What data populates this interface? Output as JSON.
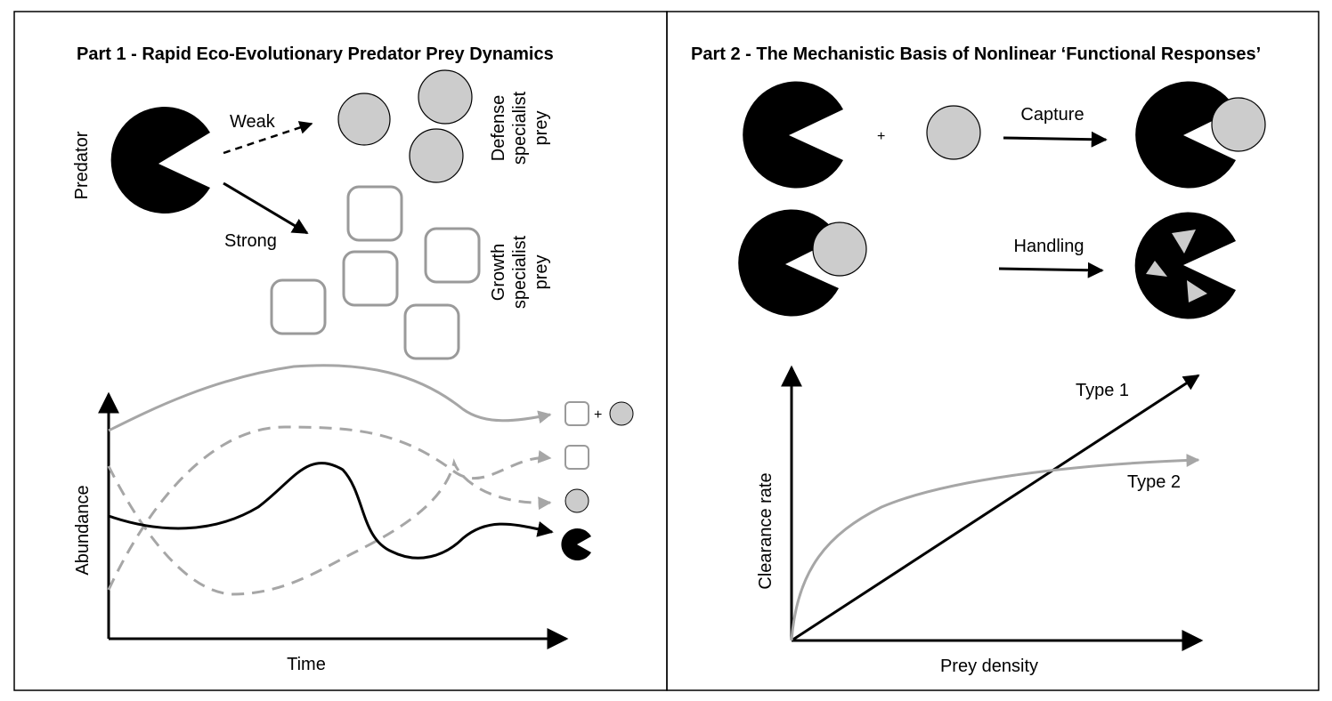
{
  "colors": {
    "black": "#000000",
    "grey_fill": "#cccccc",
    "grey_stroke": "#9a9a9a",
    "grey_line": "#a6a6a6"
  },
  "part1": {
    "title": "Part 1 - Rapid Eco-Evolutionary Predator Prey Dynamics",
    "predator_label": "Predator",
    "weak_label": "Weak",
    "strong_label": "Strong",
    "defense_label": [
      "Defense",
      "specialist",
      "prey"
    ],
    "growth_label": [
      "Growth",
      "specialist",
      "prey"
    ],
    "plot_xlabel": "Time",
    "plot_ylabel": "Abundance",
    "plus_sign": "+"
  },
  "part2": {
    "title": "Part 2 - The Mechanistic Basis of Nonlinear ‘Functional Responses’",
    "plus_sign": "+",
    "capture_label": "Capture",
    "handling_label": "Handling",
    "plot_xlabel": "Prey density",
    "plot_ylabel": "Clearance rate",
    "type1_label": "Type 1",
    "type2_label": "Type 2"
  }
}
